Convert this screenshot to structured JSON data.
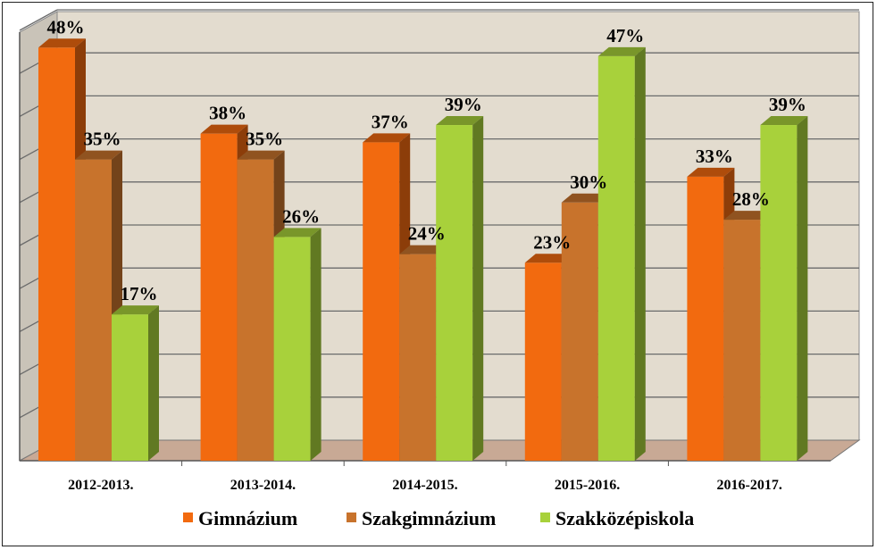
{
  "chart_data": {
    "type": "bar",
    "categories": [
      "2012-2013.",
      "2013-2014.",
      "2014-2015.",
      "2015-2016.",
      "2016-2017."
    ],
    "series": [
      {
        "name": "Gimnázium",
        "values": [
          48,
          38,
          37,
          23,
          33
        ],
        "labels": [
          "48%",
          "38%",
          "37%",
          "23%",
          "33%"
        ],
        "color": "#f26a0f"
      },
      {
        "name": "Szakgimnázium",
        "values": [
          35,
          35,
          24,
          30,
          28
        ],
        "labels": [
          "35%",
          "35%",
          "24%",
          "30%",
          "28%"
        ],
        "color": "#c8732c"
      },
      {
        "name": "Szakközépiskola",
        "values": [
          17,
          26,
          39,
          47,
          39
        ],
        "labels": [
          "17%",
          "26%",
          "39%",
          "47%",
          "39%"
        ],
        "color": "#a8d13b"
      }
    ],
    "ylim": [
      0,
      50
    ],
    "grid": true,
    "legend_position": "bottom",
    "colors": {
      "wall": "#e3dccf",
      "floor": "#c8a995",
      "side_wall": "#c9c3b8"
    }
  }
}
